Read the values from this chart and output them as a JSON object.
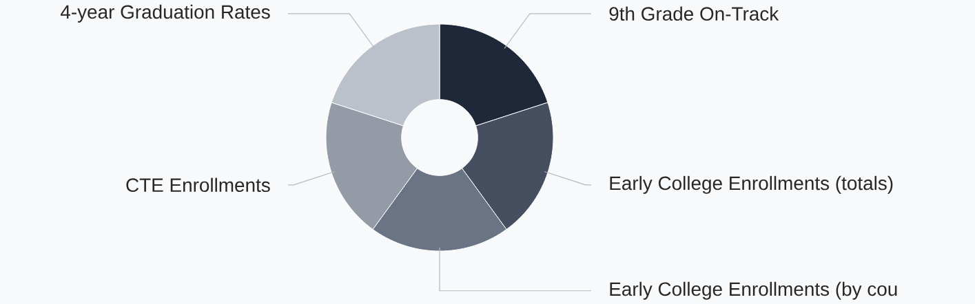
{
  "chart_data": {
    "type": "donut",
    "categories": [
      "9th Grade On-Track",
      "Early College Enrollments (totals)",
      "Early College Enrollments (by cou",
      "CTE Enrollments",
      "4-year Graduation Rates"
    ],
    "values": [
      20,
      20,
      20,
      20,
      20
    ],
    "colors": [
      "#1e2839",
      "#464f60",
      "#6b7484",
      "#949ba6",
      "#bbc1ca"
    ]
  }
}
